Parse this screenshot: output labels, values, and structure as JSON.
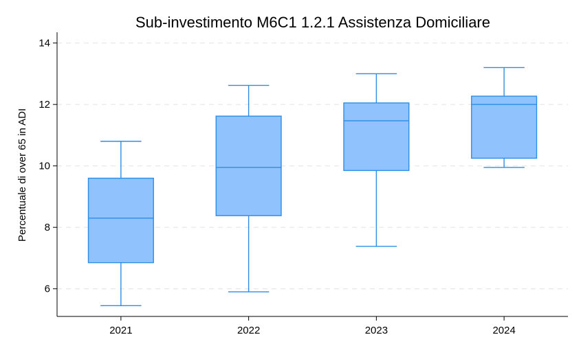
{
  "chart_data": {
    "type": "boxplot",
    "title": "Sub-investimento M6C1 1.2.1 Assistenza Domiciliare",
    "xlabel": "",
    "ylabel": "Percentuale di over 65 in ADI",
    "ylim": [
      5.1,
      14.35
    ],
    "yticks": [
      6,
      8,
      10,
      12,
      14
    ],
    "grid": true,
    "categories": [
      "2021",
      "2022",
      "2023",
      "2024"
    ],
    "boxes": [
      {
        "category": "2021",
        "whisker_low": 5.45,
        "q1": 6.85,
        "median": 8.3,
        "q3": 9.6,
        "whisker_high": 10.8
      },
      {
        "category": "2022",
        "whisker_low": 5.9,
        "q1": 8.38,
        "median": 9.95,
        "q3": 11.62,
        "whisker_high": 12.62
      },
      {
        "category": "2023",
        "whisker_low": 7.38,
        "q1": 9.85,
        "median": 11.47,
        "q3": 12.05,
        "whisker_high": 13.0
      },
      {
        "category": "2024",
        "whisker_low": 9.95,
        "q1": 10.25,
        "median": 12.0,
        "q3": 12.27,
        "whisker_high": 13.2
      }
    ],
    "colors": {
      "box_fill": "#90c3fd",
      "box_stroke": "#2b8de6",
      "grid": "#e6e6e6",
      "axis": "#000000"
    }
  }
}
